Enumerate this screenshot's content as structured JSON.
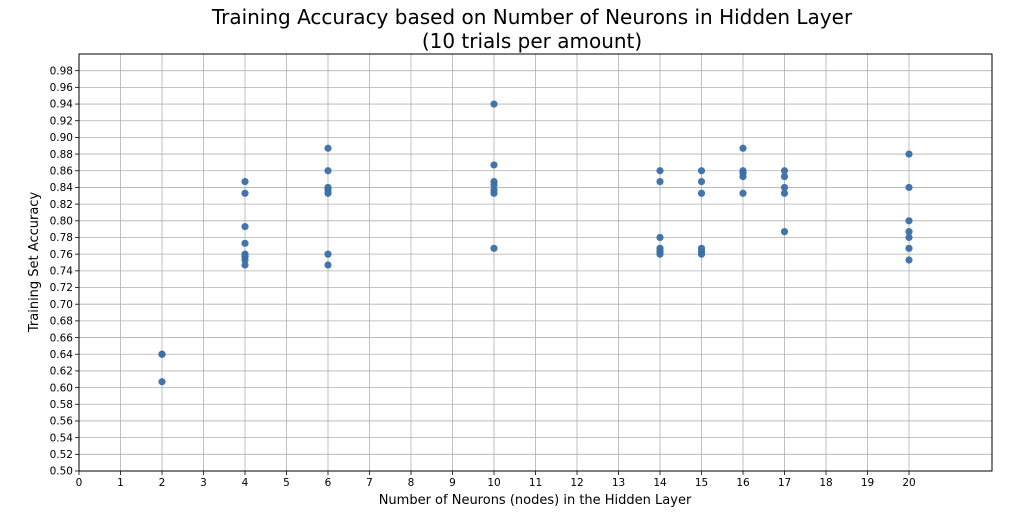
{
  "chart_data": {
    "type": "scatter",
    "title": "Training Accuracy based on Number of Neurons in Hidden Layer",
    "subtitle": "(10 trials per amount)",
    "xlabel": "Number of Neurons (nodes) in the Hidden Layer",
    "ylabel": "Training Set Accuracy",
    "xlim": [
      0,
      22
    ],
    "ylim": [
      0.5,
      1.0
    ],
    "x_ticks": [
      0,
      1,
      2,
      3,
      4,
      5,
      6,
      7,
      8,
      9,
      10,
      11,
      12,
      13,
      14,
      15,
      16,
      17,
      18,
      19,
      20
    ],
    "y_ticks": [
      "0.50",
      "0.52",
      "0.54",
      "0.56",
      "0.58",
      "0.60",
      "0.62",
      "0.64",
      "0.66",
      "0.68",
      "0.70",
      "0.72",
      "0.74",
      "0.76",
      "0.78",
      "0.80",
      "0.82",
      "0.84",
      "0.86",
      "0.88",
      "0.90",
      "0.92",
      "0.94",
      "0.96",
      "0.98"
    ],
    "grid": true,
    "marker_color": "#3a6fa8",
    "points": [
      {
        "x": 2,
        "y": 0.64
      },
      {
        "x": 2,
        "y": 0.64
      },
      {
        "x": 2,
        "y": 0.607
      },
      {
        "x": 4,
        "y": 0.847
      },
      {
        "x": 4,
        "y": 0.833
      },
      {
        "x": 4,
        "y": 0.793
      },
      {
        "x": 4,
        "y": 0.773
      },
      {
        "x": 4,
        "y": 0.76
      },
      {
        "x": 4,
        "y": 0.757
      },
      {
        "x": 4,
        "y": 0.753
      },
      {
        "x": 4,
        "y": 0.747
      },
      {
        "x": 6,
        "y": 0.887
      },
      {
        "x": 6,
        "y": 0.86
      },
      {
        "x": 6,
        "y": 0.84
      },
      {
        "x": 6,
        "y": 0.837
      },
      {
        "x": 6,
        "y": 0.833
      },
      {
        "x": 6,
        "y": 0.76
      },
      {
        "x": 6,
        "y": 0.747
      },
      {
        "x": 10,
        "y": 0.94
      },
      {
        "x": 10,
        "y": 0.867
      },
      {
        "x": 10,
        "y": 0.847
      },
      {
        "x": 10,
        "y": 0.843
      },
      {
        "x": 10,
        "y": 0.837
      },
      {
        "x": 10,
        "y": 0.833
      },
      {
        "x": 10,
        "y": 0.767
      },
      {
        "x": 14,
        "y": 0.86
      },
      {
        "x": 14,
        "y": 0.847
      },
      {
        "x": 14,
        "y": 0.78
      },
      {
        "x": 14,
        "y": 0.767
      },
      {
        "x": 14,
        "y": 0.763
      },
      {
        "x": 14,
        "y": 0.76
      },
      {
        "x": 15,
        "y": 0.86
      },
      {
        "x": 15,
        "y": 0.847
      },
      {
        "x": 15,
        "y": 0.833
      },
      {
        "x": 15,
        "y": 0.767
      },
      {
        "x": 15,
        "y": 0.763
      },
      {
        "x": 15,
        "y": 0.76
      },
      {
        "x": 16,
        "y": 0.887
      },
      {
        "x": 16,
        "y": 0.86
      },
      {
        "x": 16,
        "y": 0.857
      },
      {
        "x": 16,
        "y": 0.853
      },
      {
        "x": 16,
        "y": 0.833
      },
      {
        "x": 17,
        "y": 0.86
      },
      {
        "x": 17,
        "y": 0.853
      },
      {
        "x": 17,
        "y": 0.84
      },
      {
        "x": 17,
        "y": 0.833
      },
      {
        "x": 17,
        "y": 0.787
      },
      {
        "x": 20,
        "y": 0.88
      },
      {
        "x": 20,
        "y": 0.84
      },
      {
        "x": 20,
        "y": 0.8
      },
      {
        "x": 20,
        "y": 0.787
      },
      {
        "x": 20,
        "y": 0.78
      },
      {
        "x": 20,
        "y": 0.767
      },
      {
        "x": 20,
        "y": 0.753
      }
    ]
  }
}
